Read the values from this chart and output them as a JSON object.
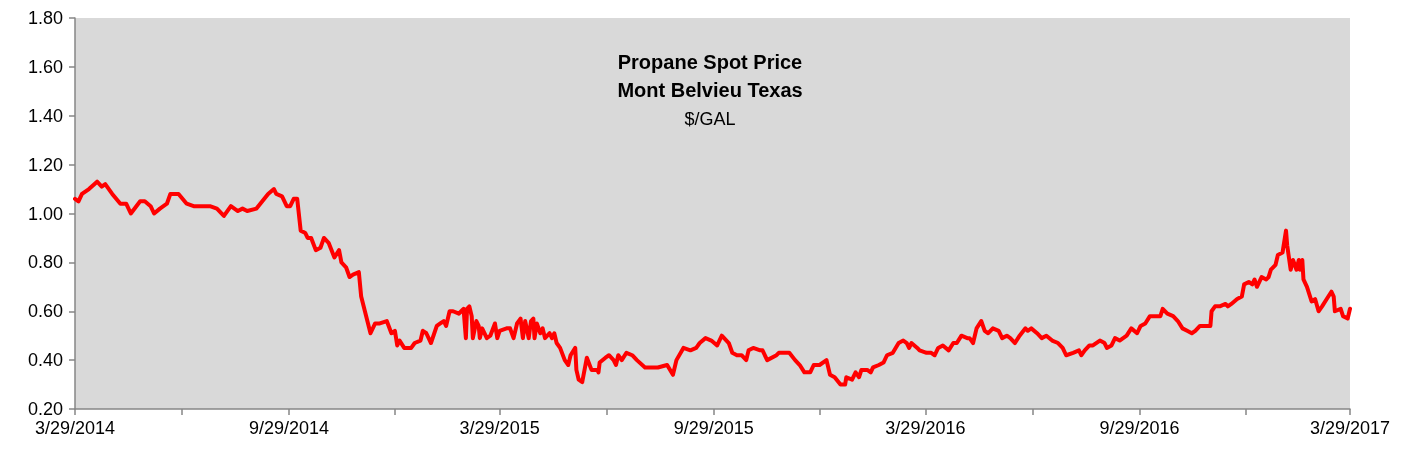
{
  "chart_data": {
    "type": "line",
    "title": "Propane Spot Price\nMont Belvieu Texas",
    "subtitle": "$/GAL",
    "color": "#ff0000",
    "x": [
      "2014-03-29",
      "2014-04-01",
      "2014-04-04",
      "2014-04-10",
      "2014-04-17",
      "2014-04-21",
      "2014-04-24",
      "2014-04-30",
      "2014-05-07",
      "2014-05-12",
      "2014-05-16",
      "2014-05-24",
      "2014-05-28",
      "2014-06-02",
      "2014-06-05",
      "2014-06-10",
      "2014-06-16",
      "2014-06-19",
      "2014-06-26",
      "2014-07-03",
      "2014-07-09",
      "2014-07-23",
      "2014-07-29",
      "2014-08-04",
      "2014-08-10",
      "2014-08-16",
      "2014-08-20",
      "2014-08-24",
      "2014-09-01",
      "2014-09-06",
      "2014-09-11",
      "2014-09-16",
      "2014-09-18",
      "2014-09-23",
      "2014-09-27",
      "2014-09-30",
      "2014-10-03",
      "2014-10-06",
      "2014-10-09",
      "2014-10-13",
      "2014-10-15",
      "2014-10-18",
      "2014-10-22",
      "2014-10-26",
      "2014-10-29",
      "2014-11-02",
      "2014-11-07",
      "2014-11-11",
      "2014-11-13",
      "2014-11-17",
      "2014-11-20",
      "2014-11-23",
      "2014-11-28",
      "2014-11-30",
      "2014-12-08",
      "2014-12-12",
      "2014-12-16",
      "2014-12-22",
      "2014-12-26",
      "2014-12-29",
      "2014-12-31",
      "2015-01-02",
      "2015-01-06",
      "2015-01-12",
      "2015-01-15",
      "2015-01-20",
      "2015-01-22",
      "2015-01-25",
      "2015-01-29",
      "2015-02-03",
      "2015-02-06",
      "2015-02-09",
      "2015-02-11",
      "2015-02-14",
      "2015-02-17",
      "2015-02-22",
      "2015-02-24",
      "2015-02-26",
      "2015-02-28",
      "2015-03-01",
      "2015-03-03",
      "2015-03-05",
      "2015-03-06",
      "2015-03-09",
      "2015-03-11",
      "2015-03-12",
      "2015-03-14",
      "2015-03-18",
      "2015-03-21",
      "2015-03-25",
      "2015-03-27",
      "2015-03-29",
      "2015-04-04",
      "2015-04-07",
      "2015-04-10",
      "2015-04-13",
      "2015-04-16",
      "2015-04-18",
      "2015-04-20",
      "2015-04-23",
      "2015-04-25",
      "2015-04-27",
      "2015-04-28",
      "2015-04-30",
      "2015-05-03",
      "2015-05-05",
      "2015-05-07",
      "2015-05-11",
      "2015-05-13",
      "2015-05-15",
      "2015-05-17",
      "2015-05-20",
      "2015-05-24",
      "2015-05-27",
      "2015-05-29",
      "2015-06-02",
      "2015-06-03",
      "2015-06-05",
      "2015-06-08",
      "2015-06-12",
      "2015-06-16",
      "2015-06-21",
      "2015-06-22",
      "2015-06-23",
      "2015-06-28",
      "2015-07-01",
      "2015-07-05",
      "2015-07-07",
      "2015-07-09",
      "2015-07-12",
      "2015-07-16",
      "2015-07-21",
      "2015-07-25",
      "2015-08-01",
      "2015-08-08",
      "2015-08-12",
      "2015-08-20",
      "2015-08-25",
      "2015-08-28",
      "2015-09-03",
      "2015-09-09",
      "2015-09-14",
      "2015-09-17",
      "2015-09-22",
      "2015-09-27",
      "2015-10-02",
      "2015-10-06",
      "2015-10-12",
      "2015-10-15",
      "2015-10-19",
      "2015-10-23",
      "2015-10-27",
      "2015-10-29",
      "2015-11-02",
      "2015-11-08",
      "2015-11-10",
      "2015-11-14",
      "2015-11-22",
      "2015-11-24",
      "2015-12-03",
      "2015-12-08",
      "2015-12-12",
      "2015-12-16",
      "2015-12-21",
      "2015-12-24",
      "2015-12-29",
      "2016-01-04",
      "2016-01-07",
      "2016-01-11",
      "2016-01-16",
      "2016-01-20",
      "2016-01-21",
      "2016-01-26",
      "2016-01-29",
      "2016-02-01",
      "2016-02-03",
      "2016-02-08",
      "2016-02-11",
      "2016-02-13",
      "2016-02-18",
      "2016-02-22",
      "2016-02-25",
      "2016-03-01",
      "2016-03-06",
      "2016-03-10",
      "2016-03-13",
      "2016-03-15",
      "2016-03-17",
      "2016-03-22",
      "2016-03-24",
      "2016-03-30",
      "2016-04-03",
      "2016-04-06",
      "2016-04-09",
      "2016-04-13",
      "2016-04-18",
      "2016-04-22",
      "2016-04-25",
      "2016-04-29",
      "2016-05-04",
      "2016-05-06",
      "2016-05-09",
      "2016-05-12",
      "2016-05-16",
      "2016-05-19",
      "2016-05-22",
      "2016-05-26",
      "2016-05-31",
      "2016-06-03",
      "2016-06-07",
      "2016-06-10",
      "2016-06-14",
      "2016-06-18",
      "2016-06-23",
      "2016-06-25",
      "2016-06-28",
      "2016-07-03",
      "2016-07-07",
      "2016-07-11",
      "2016-07-16",
      "2016-07-21",
      "2016-07-25",
      "2016-07-28",
      "2016-08-03",
      "2016-08-08",
      "2016-08-10",
      "2016-08-13",
      "2016-08-17",
      "2016-08-20",
      "2016-08-26",
      "2016-08-30",
      "2016-09-01",
      "2016-09-05",
      "2016-09-08",
      "2016-09-12",
      "2016-09-18",
      "2016-09-22",
      "2016-09-27",
      "2016-09-30",
      "2016-10-04",
      "2016-10-08",
      "2016-10-12",
      "2016-10-14",
      "2016-10-17",
      "2016-10-19",
      "2016-10-23",
      "2016-10-28",
      "2016-11-01",
      "2016-11-05",
      "2016-11-09",
      "2016-11-13",
      "2016-11-16",
      "2016-11-20",
      "2016-11-23",
      "2016-11-29",
      "2016-11-30",
      "2016-12-03",
      "2016-12-07",
      "2016-12-12",
      "2016-12-14",
      "2016-12-17",
      "2016-12-22",
      "2016-12-26",
      "2016-12-28",
      "2017-01-01",
      "2017-01-04",
      "2017-01-06",
      "2017-01-08",
      "2017-01-12",
      "2017-01-16",
      "2017-01-18",
      "2017-01-20",
      "2017-01-24",
      "2017-01-26",
      "2017-01-30",
      "2017-02-02",
      "2017-02-03",
      "2017-02-06",
      "2017-02-08",
      "2017-02-11",
      "2017-02-13",
      "2017-02-14",
      "2017-02-16",
      "2017-02-17",
      "2017-02-20",
      "2017-02-24",
      "2017-02-27",
      "2017-03-02",
      "2017-03-05",
      "2017-03-09",
      "2017-03-13",
      "2017-03-15",
      "2017-03-16",
      "2017-03-21",
      "2017-03-23",
      "2017-03-27",
      "2017-03-29"
    ],
    "values": [
      1.06,
      1.05,
      1.08,
      1.1,
      1.13,
      1.11,
      1.12,
      1.08,
      1.04,
      1.04,
      1.0,
      1.05,
      1.05,
      1.03,
      1.0,
      1.02,
      1.04,
      1.08,
      1.08,
      1.04,
      1.03,
      1.03,
      1.02,
      0.99,
      1.03,
      1.01,
      1.02,
      1.01,
      1.02,
      1.05,
      1.08,
      1.1,
      1.08,
      1.07,
      1.03,
      1.03,
      1.06,
      1.06,
      0.93,
      0.92,
      0.9,
      0.9,
      0.85,
      0.86,
      0.9,
      0.88,
      0.82,
      0.85,
      0.8,
      0.78,
      0.74,
      0.75,
      0.76,
      0.66,
      0.51,
      0.55,
      0.55,
      0.56,
      0.51,
      0.52,
      0.46,
      0.48,
      0.45,
      0.45,
      0.47,
      0.48,
      0.52,
      0.51,
      0.47,
      0.54,
      0.55,
      0.56,
      0.54,
      0.6,
      0.6,
      0.59,
      0.6,
      0.61,
      0.49,
      0.61,
      0.62,
      0.58,
      0.49,
      0.56,
      0.54,
      0.49,
      0.53,
      0.49,
      0.5,
      0.55,
      0.49,
      0.52,
      0.53,
      0.53,
      0.49,
      0.55,
      0.57,
      0.49,
      0.56,
      0.49,
      0.56,
      0.57,
      0.49,
      0.55,
      0.51,
      0.53,
      0.49,
      0.51,
      0.49,
      0.51,
      0.47,
      0.45,
      0.4,
      0.38,
      0.42,
      0.45,
      0.36,
      0.32,
      0.31,
      0.41,
      0.36,
      0.36,
      0.35,
      0.39,
      0.41,
      0.42,
      0.4,
      0.38,
      0.42,
      0.4,
      0.43,
      0.42,
      0.4,
      0.37,
      0.37,
      0.37,
      0.38,
      0.34,
      0.4,
      0.45,
      0.44,
      0.45,
      0.47,
      0.49,
      0.48,
      0.46,
      0.5,
      0.47,
      0.43,
      0.42,
      0.42,
      0.4,
      0.44,
      0.45,
      0.44,
      0.44,
      0.4,
      0.42,
      0.43,
      0.43,
      0.4,
      0.38,
      0.35,
      0.35,
      0.38,
      0.38,
      0.4,
      0.34,
      0.33,
      0.3,
      0.3,
      0.33,
      0.32,
      0.35,
      0.33,
      0.36,
      0.36,
      0.35,
      0.37,
      0.38,
      0.39,
      0.42,
      0.43,
      0.47,
      0.48,
      0.47,
      0.45,
      0.47,
      0.45,
      0.44,
      0.43,
      0.43,
      0.42,
      0.45,
      0.46,
      0.44,
      0.47,
      0.47,
      0.5,
      0.49,
      0.49,
      0.47,
      0.53,
      0.56,
      0.52,
      0.51,
      0.53,
      0.52,
      0.49,
      0.5,
      0.49,
      0.47,
      0.5,
      0.53,
      0.52,
      0.53,
      0.51,
      0.49,
      0.5,
      0.48,
      0.47,
      0.45,
      0.42,
      0.43,
      0.44,
      0.42,
      0.44,
      0.46,
      0.46,
      0.48,
      0.47,
      0.45,
      0.46,
      0.49,
      0.48,
      0.5,
      0.53,
      0.51,
      0.54,
      0.55,
      0.58,
      0.58,
      0.58,
      0.58,
      0.61,
      0.59,
      0.58,
      0.56,
      0.53,
      0.52,
      0.51,
      0.52,
      0.54,
      0.54,
      0.54,
      0.6,
      0.62,
      0.62,
      0.63,
      0.62,
      0.63,
      0.65,
      0.66,
      0.71,
      0.72,
      0.71,
      0.73,
      0.7,
      0.74,
      0.73,
      0.74,
      0.77,
      0.79,
      0.83,
      0.84,
      0.93,
      0.87,
      0.77,
      0.81,
      0.77,
      0.81,
      0.77,
      0.81,
      0.73,
      0.7,
      0.64,
      0.65,
      0.6,
      0.62,
      0.65,
      0.68,
      0.66,
      0.6,
      0.61,
      0.58,
      0.57,
      0.61
    ],
    "xlim": [
      "2014-03-29",
      "2017-03-29"
    ],
    "xticks": [
      {
        "value": "2014-03-29",
        "label": "3/29/2014"
      },
      {
        "value": "2014-06-29",
        "label": null
      },
      {
        "value": "2014-09-29",
        "label": "9/29/2014"
      },
      {
        "value": "2014-12-29",
        "label": null
      },
      {
        "value": "2015-03-29",
        "label": "3/29/2015"
      },
      {
        "value": "2015-06-29",
        "label": null
      },
      {
        "value": "2015-09-29",
        "label": "9/29/2015"
      },
      {
        "value": "2015-12-29",
        "label": null
      },
      {
        "value": "2016-03-29",
        "label": "3/29/2016"
      },
      {
        "value": "2016-06-29",
        "label": null
      },
      {
        "value": "2016-09-29",
        "label": "9/29/2016"
      },
      {
        "value": "2016-12-29",
        "label": null
      },
      {
        "value": "2017-03-29",
        "label": "3/29/2017"
      }
    ],
    "ylim": [
      0.2,
      1.8
    ],
    "yticks": [
      {
        "value": 0.2,
        "label": "0.20"
      },
      {
        "value": 0.4,
        "label": "0.40"
      },
      {
        "value": 0.6,
        "label": "0.60"
      },
      {
        "value": 0.8,
        "label": "0.80"
      },
      {
        "value": 1.0,
        "label": "1.00"
      },
      {
        "value": 1.2,
        "label": "1.20"
      },
      {
        "value": 1.4,
        "label": "1.40"
      },
      {
        "value": 1.6,
        "label": "1.60"
      },
      {
        "value": 1.8,
        "label": "1.80"
      }
    ]
  }
}
